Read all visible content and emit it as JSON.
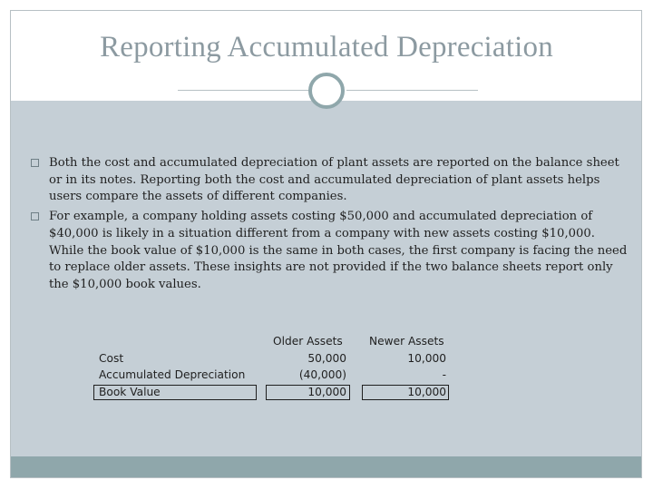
{
  "slide": {
    "title": "Reporting Accumulated Depreciation"
  },
  "bullets": [
    "Both the cost and accumulated depreciation of plant assets are reported on the balance sheet or in its notes. Reporting both the cost and accumulated depreciation of plant assets helps users compare the assets of different companies.",
    "For example, a company holding assets costing $50,000 and accumulated depreciation of $40,000 is likely in a situation different from a company with new assets costing $10,000. While the book value of $10,000 is the same in both cases, the first company is facing the need to replace older assets. These insights are not provided if the two balance sheets report only the $10,000 book values."
  ],
  "table": {
    "headers": {
      "older": "Older Assets",
      "newer": "Newer Assets"
    },
    "rows": [
      {
        "label": "Cost",
        "older": "50,000",
        "newer": "10,000"
      },
      {
        "label": "Accumulated Depreciation",
        "older": "(40,000)",
        "newer": "-"
      },
      {
        "label": "Book Value",
        "older": "10,000",
        "newer": "10,000"
      }
    ]
  },
  "colors": {
    "title": "#8c9aa1",
    "panel": "#c5cfd6",
    "footer": "#8fa7ab",
    "ornament": "#8fa7ab"
  }
}
